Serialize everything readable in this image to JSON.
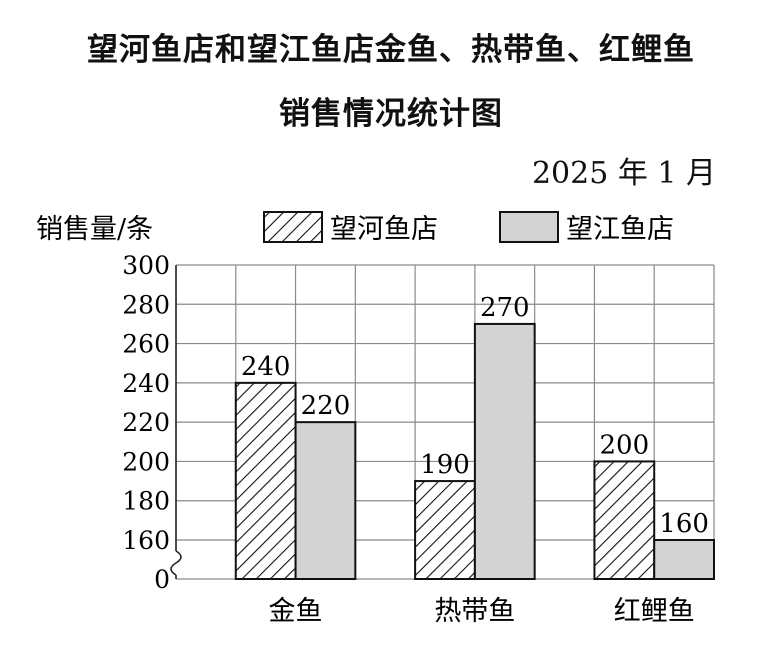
{
  "chart_data": {
    "type": "bar",
    "title_line1": "望河鱼店和望江鱼店金鱼、热带鱼、红鲤鱼",
    "title_line2": "销售情况统计图",
    "date": "2025 年 1 月",
    "ylabel": "销售量/条",
    "categories": [
      "金鱼",
      "热带鱼",
      "红鲤鱼"
    ],
    "series": [
      {
        "name": "望河鱼店",
        "values": [
          240,
          190,
          200
        ],
        "fill": "hatch"
      },
      {
        "name": "望江鱼店",
        "values": [
          220,
          270,
          160
        ],
        "fill": "#d3d3d3"
      }
    ],
    "y_ticks": [
      "300",
      "280",
      "260",
      "240",
      "220",
      "200",
      "180",
      "160",
      "0"
    ],
    "ylim": [
      160,
      300
    ],
    "y_axis_break": true,
    "grid": true,
    "legend_position": "top"
  }
}
